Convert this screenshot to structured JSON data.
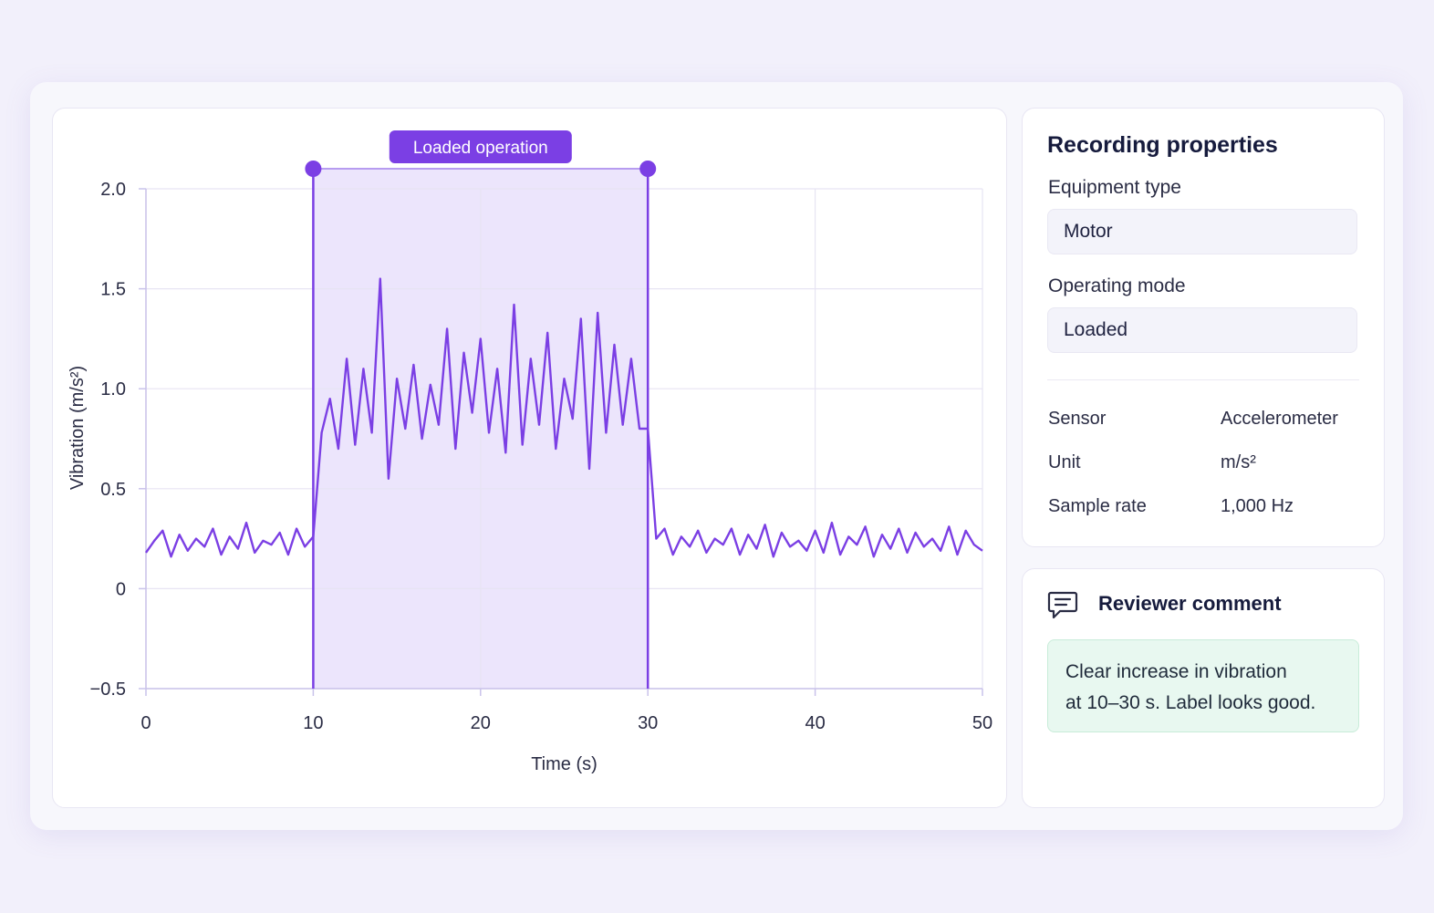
{
  "chart": {
    "band_label": "Loaded operation",
    "xlabel": "Time (s)",
    "ylabel": "Vibration (m/s²)"
  },
  "properties": {
    "title": "Recording properties",
    "equipment_type_label": "Equipment type",
    "equipment_type_value": "Motor",
    "operating_mode_label": "Operating mode",
    "operating_mode_value": "Loaded",
    "rows": [
      {
        "key": "Sensor",
        "value": "Accelerometer"
      },
      {
        "key": "Unit",
        "value": "m/s²"
      },
      {
        "key": "Sample rate",
        "value": "1,000 Hz"
      }
    ]
  },
  "review": {
    "title": "Reviewer comment",
    "lines": [
      "Clear increase in vibration",
      "at 10–30 s. Label looks good."
    ]
  },
  "colors": {
    "accent": "#7b3fe4",
    "band_fill": "#e9e1fb",
    "comment_bg": "#e8f8f0"
  },
  "icons": {
    "review": "comment-icon",
    "handle": "range-handle"
  },
  "chart_data": {
    "type": "line",
    "xlabel": "Time (s)",
    "ylabel": "Vibration (m/s²)",
    "xlim": [
      0,
      50
    ],
    "ylim": [
      -0.5,
      2.0
    ],
    "x_ticks": [
      0,
      10,
      20,
      30,
      40,
      50
    ],
    "y_ticks": [
      -0.5,
      0,
      0.5,
      1.0,
      1.5,
      2.0
    ],
    "y_tick_labels": [
      "−0.5",
      "0",
      "0.5",
      "1.0",
      "1.5",
      "2.0"
    ],
    "grid": true,
    "highlight": {
      "label": "Loaded operation",
      "x_start": 10,
      "x_end": 30
    },
    "series": [
      {
        "values": [
          [
            0,
            0.18
          ],
          [
            0.5,
            0.24
          ],
          [
            1,
            0.29
          ],
          [
            1.5,
            0.16
          ],
          [
            2,
            0.27
          ],
          [
            2.5,
            0.19
          ],
          [
            3,
            0.25
          ],
          [
            3.5,
            0.21
          ],
          [
            4,
            0.3
          ],
          [
            4.5,
            0.17
          ],
          [
            5,
            0.26
          ],
          [
            5.5,
            0.2
          ],
          [
            6,
            0.33
          ],
          [
            6.5,
            0.18
          ],
          [
            7,
            0.24
          ],
          [
            7.5,
            0.22
          ],
          [
            8,
            0.28
          ],
          [
            8.5,
            0.17
          ],
          [
            9,
            0.3
          ],
          [
            9.5,
            0.21
          ],
          [
            10,
            0.26
          ],
          [
            10.5,
            0.78
          ],
          [
            11,
            0.95
          ],
          [
            11.5,
            0.7
          ],
          [
            12,
            1.15
          ],
          [
            12.5,
            0.72
          ],
          [
            13,
            1.1
          ],
          [
            13.5,
            0.78
          ],
          [
            14,
            1.55
          ],
          [
            14.5,
            0.55
          ],
          [
            15,
            1.05
          ],
          [
            15.5,
            0.8
          ],
          [
            16,
            1.12
          ],
          [
            16.5,
            0.75
          ],
          [
            17,
            1.02
          ],
          [
            17.5,
            0.82
          ],
          [
            18,
            1.3
          ],
          [
            18.5,
            0.7
          ],
          [
            19,
            1.18
          ],
          [
            19.5,
            0.88
          ],
          [
            20,
            1.25
          ],
          [
            20.5,
            0.78
          ],
          [
            21,
            1.1
          ],
          [
            21.5,
            0.68
          ],
          [
            22,
            1.42
          ],
          [
            22.5,
            0.72
          ],
          [
            23,
            1.15
          ],
          [
            23.5,
            0.82
          ],
          [
            24,
            1.28
          ],
          [
            24.5,
            0.7
          ],
          [
            25,
            1.05
          ],
          [
            25.5,
            0.85
          ],
          [
            26,
            1.35
          ],
          [
            26.5,
            0.6
          ],
          [
            27,
            1.38
          ],
          [
            27.5,
            0.78
          ],
          [
            28,
            1.22
          ],
          [
            28.5,
            0.82
          ],
          [
            29,
            1.15
          ],
          [
            29.5,
            0.8
          ],
          [
            30,
            0.8
          ],
          [
            30.5,
            0.25
          ],
          [
            31,
            0.3
          ],
          [
            31.5,
            0.17
          ],
          [
            32,
            0.26
          ],
          [
            32.5,
            0.21
          ],
          [
            33,
            0.29
          ],
          [
            33.5,
            0.18
          ],
          [
            34,
            0.25
          ],
          [
            34.5,
            0.22
          ],
          [
            35,
            0.3
          ],
          [
            35.5,
            0.17
          ],
          [
            36,
            0.27
          ],
          [
            36.5,
            0.2
          ],
          [
            37,
            0.32
          ],
          [
            37.5,
            0.16
          ],
          [
            38,
            0.28
          ],
          [
            38.5,
            0.21
          ],
          [
            39,
            0.24
          ],
          [
            39.5,
            0.19
          ],
          [
            40,
            0.29
          ],
          [
            40.5,
            0.18
          ],
          [
            41,
            0.33
          ],
          [
            41.5,
            0.17
          ],
          [
            42,
            0.26
          ],
          [
            42.5,
            0.22
          ],
          [
            43,
            0.31
          ],
          [
            43.5,
            0.16
          ],
          [
            44,
            0.27
          ],
          [
            44.5,
            0.2
          ],
          [
            45,
            0.3
          ],
          [
            45.5,
            0.18
          ],
          [
            46,
            0.28
          ],
          [
            46.5,
            0.21
          ],
          [
            47,
            0.25
          ],
          [
            47.5,
            0.19
          ],
          [
            48,
            0.31
          ],
          [
            48.5,
            0.17
          ],
          [
            49,
            0.29
          ],
          [
            49.5,
            0.22
          ],
          [
            50,
            0.19
          ]
        ]
      }
    ]
  }
}
